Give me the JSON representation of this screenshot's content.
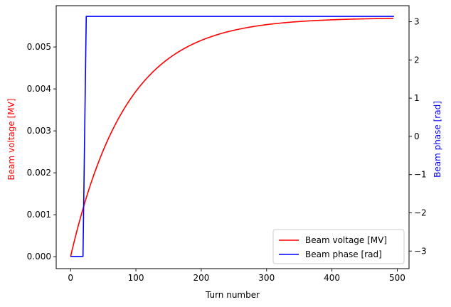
{
  "chart_data": {
    "type": "line",
    "xlabel": "Turn number",
    "ylabel_left": "Beam voltage [MV]",
    "ylabel_right": "Beam phase [rad]",
    "xlim": [
      -22,
      518
    ],
    "ylim_left": [
      -0.000285,
      0.005985
    ],
    "ylim_right": [
      -3.46,
      3.42
    ],
    "x_ticks": [
      0,
      100,
      200,
      300,
      400,
      500
    ],
    "y_left_ticks": [
      0.0,
      0.001,
      0.002,
      0.003,
      0.004,
      0.005
    ],
    "y_left_tick_labels": [
      "0.000",
      "0.001",
      "0.002",
      "0.003",
      "0.004",
      "0.005"
    ],
    "y_right_ticks": [
      -3,
      -2,
      -1,
      0,
      1,
      2,
      3
    ],
    "y_right_tick_labels": [
      "−3",
      "−2",
      "−1",
      "0",
      "1",
      "2",
      "3"
    ],
    "grid": false,
    "legend_position": "bottom-right",
    "series": [
      {
        "name": "Beam voltage [MV]",
        "axis": "left",
        "color": "#ff0000",
        "x": [
          0,
          10,
          20,
          30,
          40,
          50,
          60,
          70,
          80,
          90,
          100,
          125,
          150,
          175,
          200,
          250,
          300,
          350,
          400,
          450,
          495
        ],
        "y": [
          0.0,
          0.00067,
          0.00127,
          0.00182,
          0.00231,
          0.00275,
          0.00315,
          0.00351,
          0.00384,
          0.00413,
          0.0044,
          0.00492,
          0.00516,
          0.00535,
          0.0055,
          0.00563,
          0.00568,
          0.00569,
          0.0057,
          0.0057,
          0.0057
        ]
      },
      {
        "name": "Beam phase [rad]",
        "axis": "right",
        "color": "#0000ff",
        "x": [
          0,
          19,
          24,
          100,
          200,
          300,
          400,
          495
        ],
        "y": [
          -3.14,
          -3.14,
          3.14,
          3.14,
          3.14,
          3.14,
          3.14,
          3.14
        ]
      }
    ]
  }
}
